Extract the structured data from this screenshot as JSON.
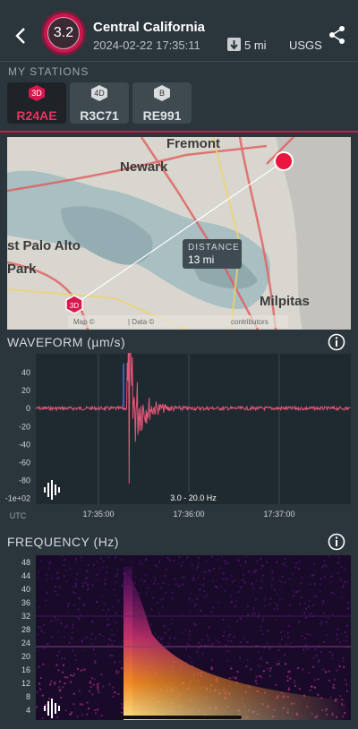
{
  "header": {
    "magnitude": "3.2",
    "title": "Central California",
    "datetime": "2024-02-22 17:35:11",
    "distance": "5 mi",
    "source": "USGS"
  },
  "stations": {
    "label": "MY STATIONS",
    "items": [
      {
        "badge": "3D",
        "name": "R24AE"
      },
      {
        "badge": "4D",
        "name": "R3C71"
      },
      {
        "badge": "B",
        "name": "RE991"
      }
    ]
  },
  "map": {
    "places": [
      "Fremont",
      "Newark",
      "st Palo Alto",
      "Park",
      "Milpitas"
    ],
    "distance_label": "DISTANCE",
    "distance_value": "13 mi",
    "station_badge": "3D",
    "attribution": [
      "Map ©",
      "| Data ©",
      "contributors"
    ]
  },
  "waveform": {
    "title": "WAVEFORM (µm/s)",
    "yticks": [
      "40",
      "20",
      "0",
      "-20",
      "-40",
      "-60",
      "-80",
      "-1e+02"
    ],
    "xaxis_label": "UTC",
    "xticks": [
      "17:35:00",
      "17:36:00",
      "17:37:00"
    ],
    "filter": "3.0 - 20.0 Hz"
  },
  "frequency": {
    "title": "FREQUENCY (Hz)",
    "yticks": [
      "48",
      "44",
      "40",
      "36",
      "32",
      "28",
      "24",
      "20",
      "16",
      "12",
      "8",
      "4"
    ]
  }
}
